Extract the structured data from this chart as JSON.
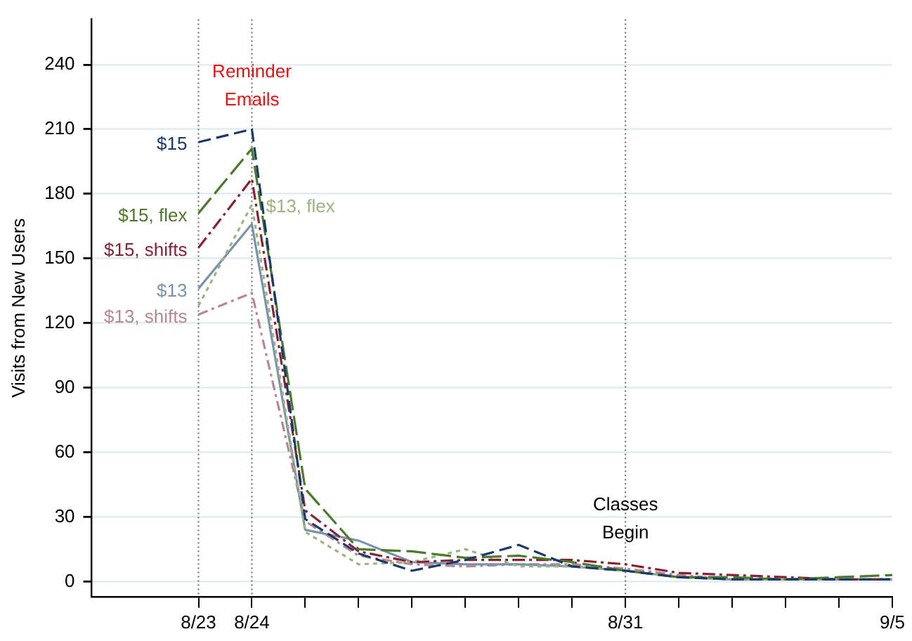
{
  "chart_data": {
    "type": "line",
    "ylabel": "Visits from New Users",
    "x": [
      "--08-23",
      "--08-24",
      "--08-25",
      "--08-26",
      "--08-27",
      "--08-28",
      "--08-29",
      "--08-30",
      "--08-31",
      "--09-01",
      "--09-02",
      "--09-03",
      "--09-04",
      "--09-05"
    ],
    "series": [
      {
        "name": "$15",
        "color": "#1a3a6b",
        "line_style": "dashed",
        "values": [
          204,
          210,
          29,
          13,
          5,
          10,
          17,
          7,
          5,
          2,
          1,
          1,
          1,
          1
        ]
      },
      {
        "name": "$15, flex",
        "color": "#4a7a2a",
        "line_style": "dashed",
        "values": [
          171,
          201,
          43,
          15,
          14,
          11,
          12,
          9,
          5,
          2,
          2,
          1,
          2,
          3
        ]
      },
      {
        "name": "$15, shifts",
        "color": "#8b2035",
        "line_style": "dashed",
        "values": [
          155,
          187,
          33,
          14,
          9,
          10,
          10,
          10,
          8,
          4,
          3,
          2,
          1,
          1
        ]
      },
      {
        "name": "$13, flex",
        "color": "#9bb580",
        "line_style": "dotted",
        "values": [
          128,
          175,
          23,
          8,
          9,
          15,
          7,
          7,
          5,
          2,
          1,
          1,
          1,
          1
        ]
      },
      {
        "name": "$13",
        "color": "#7a92ad",
        "line_style": "solid",
        "values": [
          136,
          166,
          24,
          19,
          9,
          8,
          8,
          7,
          5,
          2,
          1,
          1,
          1,
          1
        ]
      },
      {
        "name": "$13, shifts",
        "color": "#b88890",
        "line_style": "dashed",
        "values": [
          124,
          134,
          28,
          12,
          8,
          7,
          8,
          8,
          6,
          3,
          1,
          1,
          1,
          1
        ]
      }
    ],
    "xlim": [
      "--08-21",
      "--09-05"
    ],
    "xticks": [
      {
        "value": "--08-23",
        "label": "8/23"
      },
      {
        "value": "--08-24",
        "label": "8/24"
      },
      {
        "value": "--08-25",
        "label": null
      },
      {
        "value": "--08-26",
        "label": null
      },
      {
        "value": "--08-27",
        "label": null
      },
      {
        "value": "--08-28",
        "label": null
      },
      {
        "value": "--08-29",
        "label": null
      },
      {
        "value": "--08-30",
        "label": null
      },
      {
        "value": "--08-31",
        "label": "8/31"
      },
      {
        "value": "--09-01",
        "label": null
      },
      {
        "value": "--09-02",
        "label": null
      },
      {
        "value": "--09-03",
        "label": null
      },
      {
        "value": "--09-04",
        "label": null
      },
      {
        "value": "--09-05",
        "label": "9/5"
      }
    ],
    "ylim": [
      -7,
      261
    ],
    "yticks": [
      0,
      30,
      60,
      90,
      120,
      150,
      180,
      210,
      240
    ],
    "ref_lines": [
      {
        "axis": "x",
        "value": "--08-23",
        "line_style": "dotted"
      },
      {
        "axis": "x",
        "value": "--08-24",
        "line_style": "dotted"
      },
      {
        "axis": "x",
        "value": "--08-31",
        "line_style": "dotted"
      }
    ],
    "annotations": [
      {
        "text": "Reminder Emails",
        "x": "--08-24",
        "y": 230
      },
      {
        "text": "Classes Begin",
        "x": "--08-31",
        "y": 29
      }
    ],
    "grid": "y",
    "legend": false,
    "marker": "none"
  }
}
